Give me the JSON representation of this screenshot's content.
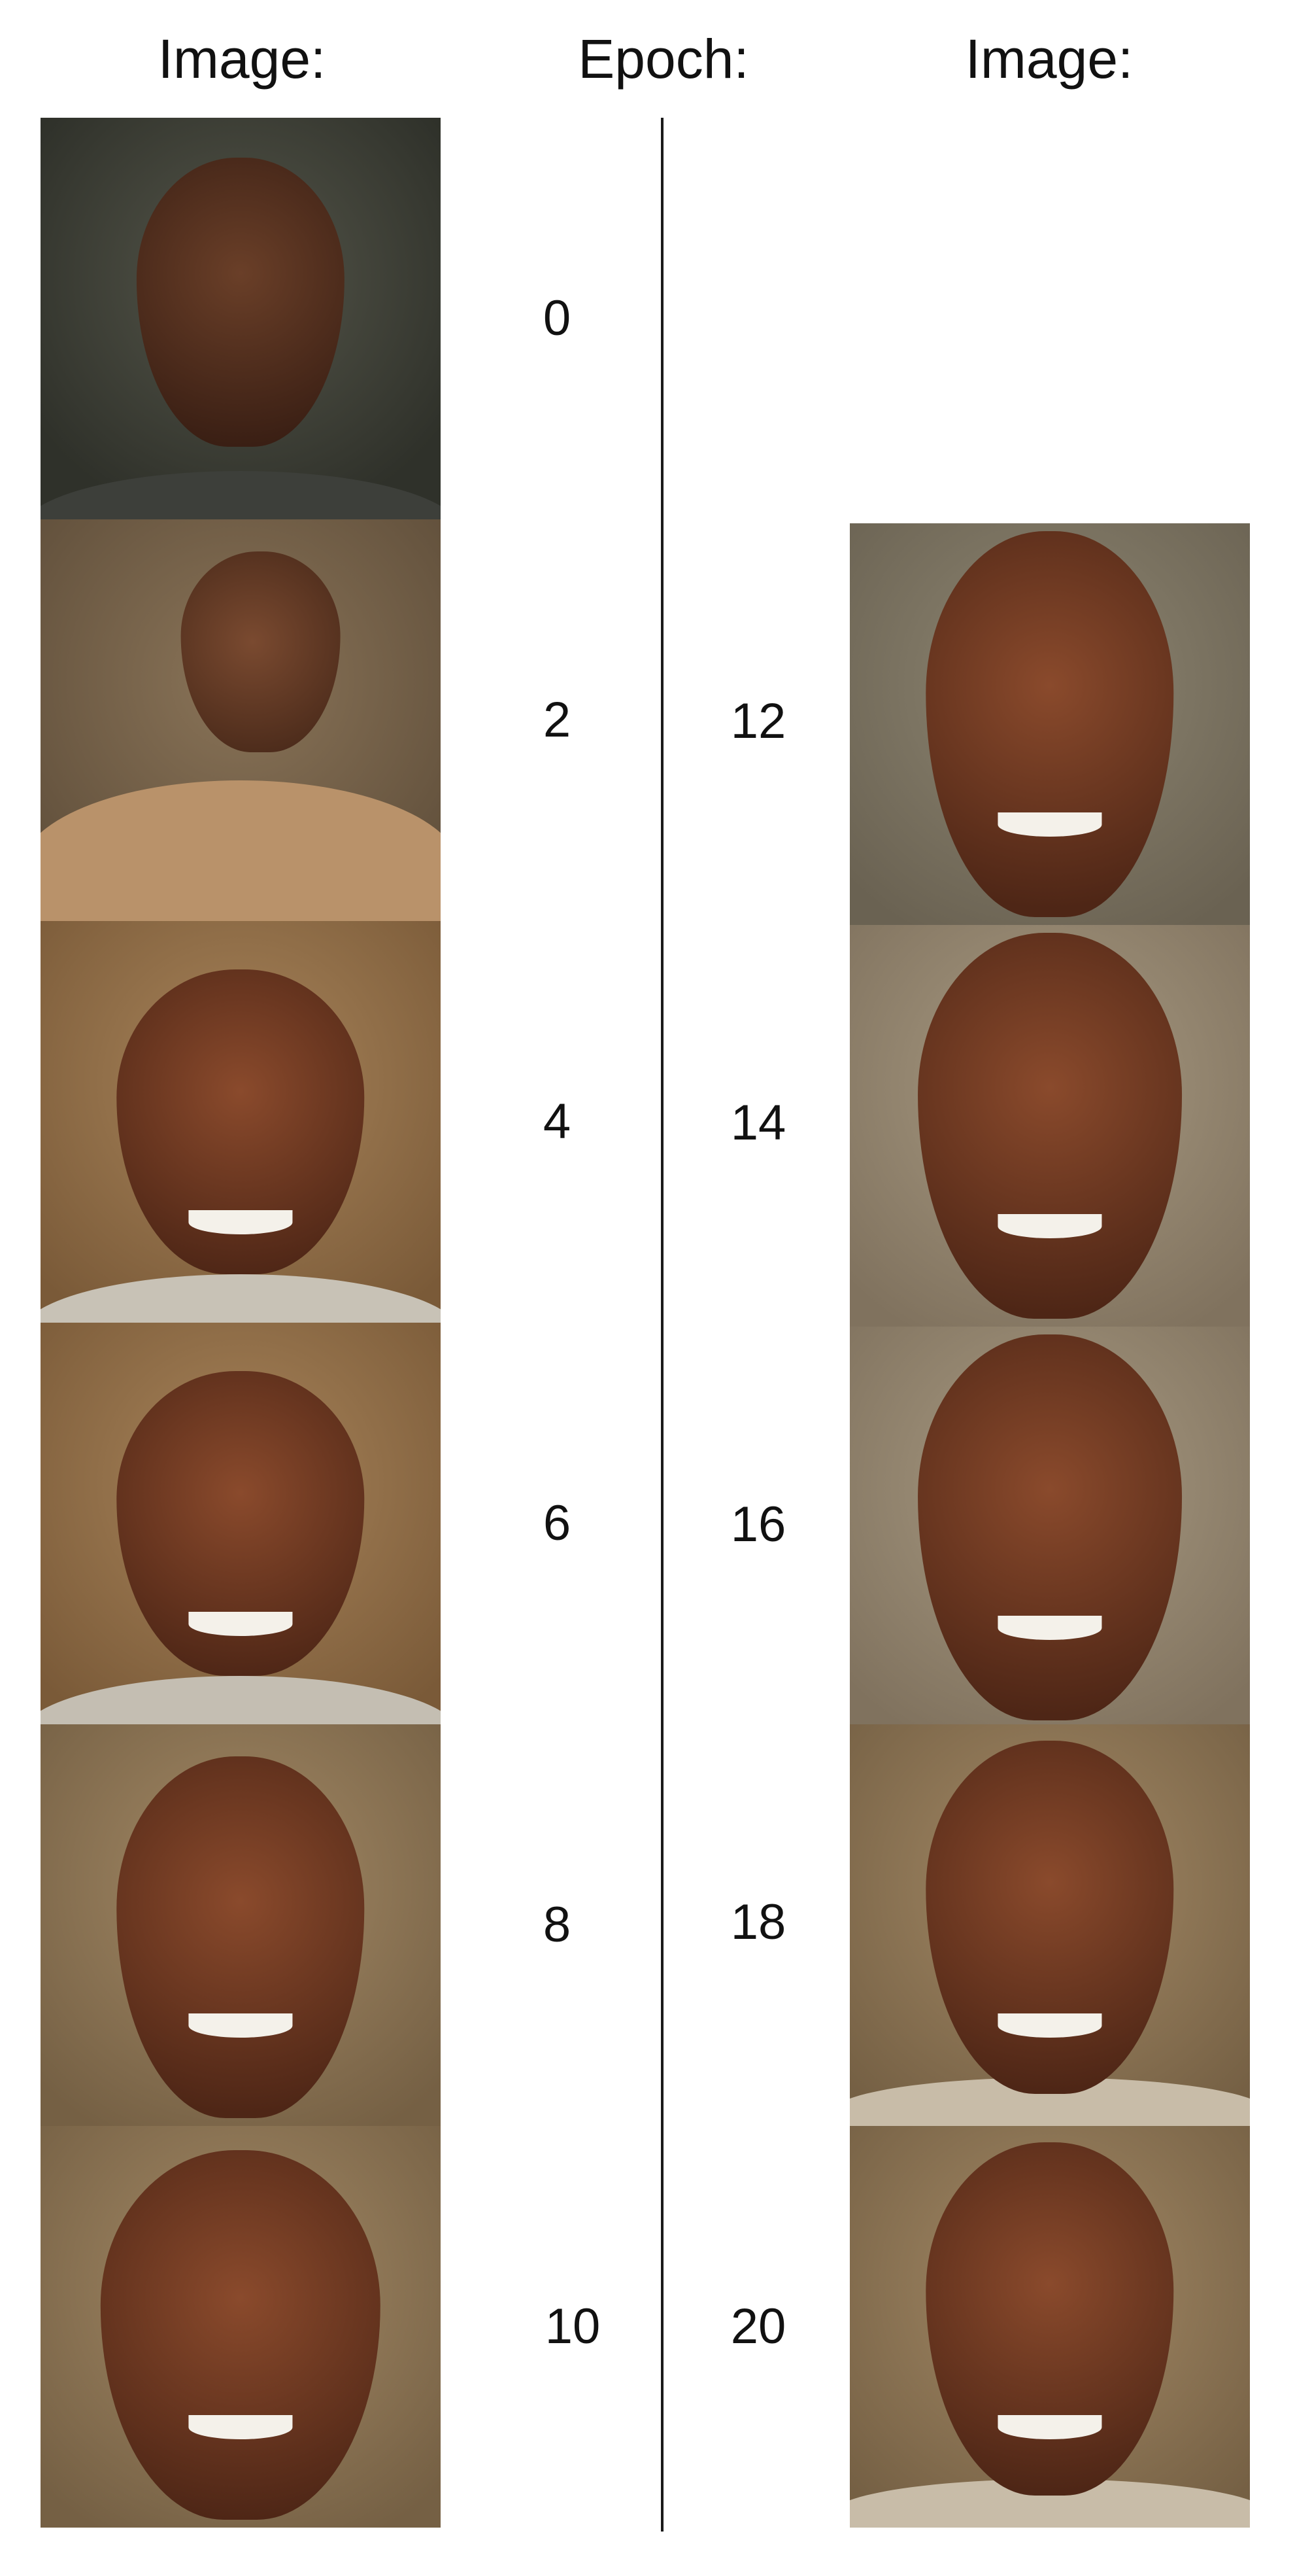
{
  "headers": {
    "left": "Image:",
    "middle": "Epoch:",
    "right": "Image:"
  },
  "left_column": [
    {
      "epoch": "0"
    },
    {
      "epoch": "2"
    },
    {
      "epoch": "4"
    },
    {
      "epoch": "6"
    },
    {
      "epoch": "8"
    },
    {
      "epoch": "10"
    }
  ],
  "right_column": [
    {
      "epoch": "12"
    },
    {
      "epoch": "14"
    },
    {
      "epoch": "16"
    },
    {
      "epoch": "18"
    },
    {
      "epoch": "20"
    }
  ],
  "colors": {
    "background": "#ffffff",
    "divider": "#1a1a1a",
    "skin_tone": "#6b3a24",
    "backdrop_warm": "#9a7a55",
    "backdrop_dark": "#3e3a30"
  }
}
